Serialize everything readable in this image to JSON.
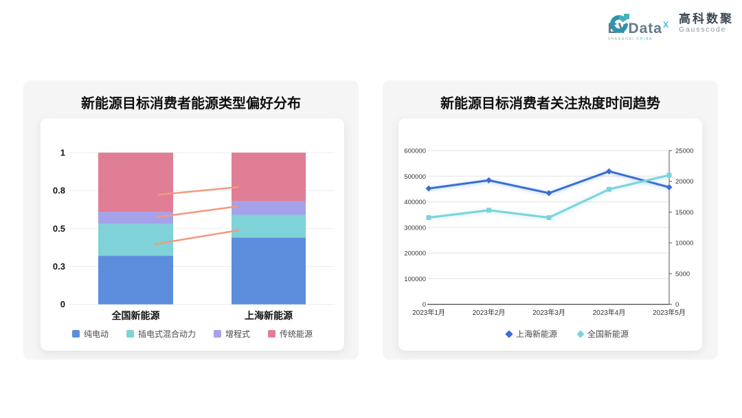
{
  "header": {
    "evdata": {
      "wordmark": "EVData",
      "sup": "X",
      "tagline_left": "SHANGHAI",
      "tagline_right": "CHINA"
    },
    "gausscode": {
      "cn": "高科数聚",
      "en": "Gausscode"
    }
  },
  "colors": {
    "annotation_line": "#f49a7e",
    "gridline_bar": "#ececec",
    "gridline_line": "#e3e3e3",
    "axis_dark": "#333333",
    "right_axis": "#555555"
  },
  "chart_data": [
    {
      "type": "bar",
      "stacked": true,
      "title": "新能源目标消费者能源类型偏好分布",
      "categories": [
        "全国新能源",
        "上海新能源"
      ],
      "series": [
        {
          "name": "纯电动",
          "color": "#5d8edd",
          "values": [
            0.32,
            0.44
          ]
        },
        {
          "name": "插电式混合动力",
          "color": "#7fd2d7",
          "values": [
            0.21,
            0.15
          ]
        },
        {
          "name": "增程式",
          "color": "#a5a1ea",
          "values": [
            0.08,
            0.09
          ]
        },
        {
          "name": "传统能源",
          "color": "#e07e95",
          "values": [
            0.39,
            0.32
          ]
        }
      ],
      "ylim": [
        0,
        1
      ],
      "y_ticks": [
        {
          "value": 0,
          "label": "0"
        },
        {
          "value": 0.25,
          "label": "0.3"
        },
        {
          "value": 0.5,
          "label": "0.5"
        },
        {
          "value": 0.75,
          "label": "0.8"
        },
        {
          "value": 1,
          "label": "1"
        }
      ],
      "grid": true,
      "legend_position": "bottom",
      "annotations": [
        {
          "from": [
            0.346,
            0.723
          ],
          "to": [
            0.651,
            0.773
          ]
        },
        {
          "from": [
            0.336,
            0.574
          ],
          "to": [
            0.649,
            0.646
          ]
        },
        {
          "from": [
            0.333,
            0.397
          ],
          "to": [
            0.651,
            0.488
          ]
        }
      ]
    },
    {
      "type": "line",
      "title": "新能源目标消费者关注热度时间趋势",
      "categories": [
        "2023年1月",
        "2023年2月",
        "2023年3月",
        "2023年4月",
        "2023年5月"
      ],
      "series": [
        {
          "name": "上海新能源",
          "axis": "left",
          "marker": "diamond",
          "color": "#3a6ed0",
          "values": [
            452000,
            484000,
            434000,
            519000,
            457000
          ]
        },
        {
          "name": "全国新能源",
          "axis": "right",
          "marker": "square",
          "color": "#7cd2dd",
          "values": [
            14100,
            15300,
            14100,
            18700,
            21000
          ]
        }
      ],
      "left_axis": {
        "max": 600000,
        "ticks": [
          0,
          100000,
          200000,
          300000,
          400000,
          500000,
          600000
        ]
      },
      "right_axis": {
        "max": 25000,
        "ticks": [
          0,
          5000,
          10000,
          15000,
          20000,
          25000
        ]
      },
      "grid": true,
      "legend_position": "bottom"
    }
  ]
}
